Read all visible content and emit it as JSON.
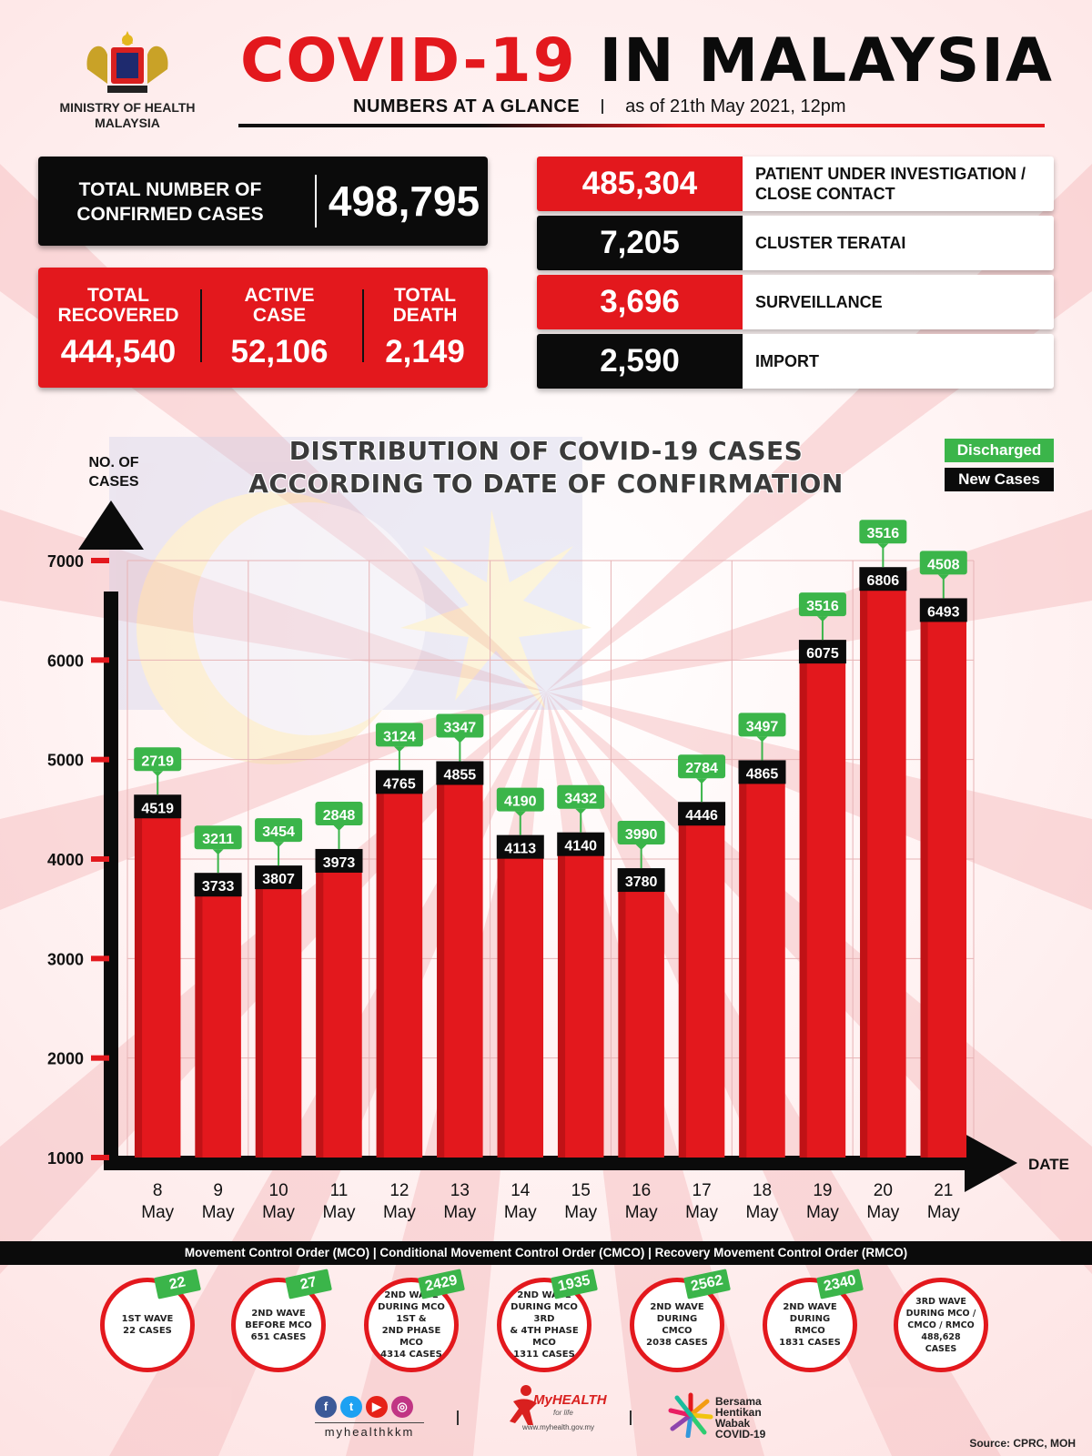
{
  "header": {
    "ministry": "MINISTRY OF HEALTH\nMALAYSIA",
    "title_part1": "COVID-19",
    "title_part2": "IN MALAYSIA",
    "subtitle": "NUMBERS AT A GLANCE",
    "as_of": "as of 21th May 2021, 12pm"
  },
  "totals": {
    "confirmed_label": "TOTAL NUMBER OF\nCONFIRMED CASES",
    "confirmed_value": "498,795",
    "recovered_label": "TOTAL\nRECOVERED",
    "recovered_value": "444,540",
    "active_label": "ACTIVE\nCASE",
    "active_value": "52,106",
    "death_label": "TOTAL\nDEATH",
    "death_value": "2,149"
  },
  "sources_list": [
    {
      "value": "485,304",
      "label": "PATIENT UNDER INVESTIGATION / CLOSE CONTACT",
      "color": "red"
    },
    {
      "value": "7,205",
      "label": "CLUSTER TERATAI",
      "color": "black"
    },
    {
      "value": "3,696",
      "label": "SURVEILLANCE",
      "color": "red"
    },
    {
      "value": "2,590",
      "label": "IMPORT",
      "color": "black"
    }
  ],
  "chart_data": {
    "type": "bar",
    "title": "DISTRIBUTION OF COVID-19 CASES\nACCORDING TO DATE OF CONFIRMATION",
    "ylabel": "NO. OF\nCASES",
    "xlabel": "DATE",
    "categories": [
      "8\nMay",
      "9\nMay",
      "10\nMay",
      "11\nMay",
      "12\nMay",
      "13\nMay",
      "14\nMay",
      "15\nMay",
      "16\nMay",
      "17\nMay",
      "18\nMay",
      "19\nMay",
      "20\nMay",
      "21\nMay"
    ],
    "series": [
      {
        "name": "New Cases",
        "values": [
          4519,
          3733,
          3807,
          3973,
          4765,
          4855,
          4113,
          4140,
          3780,
          4446,
          4865,
          6075,
          6806,
          6493
        ]
      },
      {
        "name": "Discharged",
        "values": [
          2719,
          3211,
          3454,
          2848,
          3124,
          3347,
          4190,
          3432,
          3990,
          2784,
          3497,
          3516,
          3516,
          4508
        ]
      }
    ],
    "yticks": [
      1000,
      2000,
      3000,
      4000,
      5000,
      6000,
      7000
    ],
    "ylim": [
      1000,
      7000
    ],
    "grid": true,
    "legend_position": "top-right",
    "colors": {
      "new_cases_bar": "#e3181d",
      "new_cases_label": "#0b0b0b",
      "discharged_label": "#3bb54a"
    }
  },
  "mco_bar": "Movement Control Order (MCO) | Conditional Movement Control Order (CMCO) | Recovery Movement Control Order (RMCO)",
  "waves": [
    {
      "text": "1ST WAVE\n22 CASES",
      "badge": "22"
    },
    {
      "text": "2ND WAVE\nBEFORE MCO\n651 CASES",
      "badge": "27"
    },
    {
      "text": "2ND WAVE\nDURING MCO 1ST &\n2ND PHASE MCO\n4314 CASES",
      "badge": "2429"
    },
    {
      "text": "2ND WAVE\nDURING MCO 3RD\n& 4TH PHASE MCO\n1311 CASES",
      "badge": "1935"
    },
    {
      "text": "2ND WAVE\nDURING CMCO\n2038 CASES",
      "badge": "2562"
    },
    {
      "text": "2ND WAVE\nDURING RMCO\n1831 CASES",
      "badge": "2340"
    },
    {
      "text": "3RD WAVE\nDURING MCO /\nCMCO / RMCO\n488,628\nCASES",
      "badge": ""
    }
  ],
  "footer": {
    "social_handle": "myhealthkkm",
    "myhealth": "MyHEALTH",
    "myhealth_tag": "for life",
    "myhealth_url": "www.myhealth.gov.my",
    "bersama": "Bersama\nHentikan\nWabak\nCOVID-19",
    "source": "Source: CPRC, MOH"
  }
}
